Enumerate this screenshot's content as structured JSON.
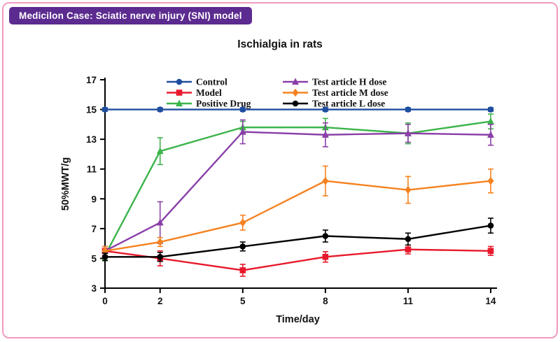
{
  "header": {
    "badge": "Medicilon Case: Sciatic nerve injury (SNI) model",
    "badge_bg": "#5b2b8f",
    "card_border": "#f19bc1"
  },
  "chart_data": {
    "type": "line",
    "title": "Ischialgia in rats",
    "xlabel": "Time/day",
    "ylabel": "50%MWT/g",
    "x": [
      0,
      2,
      5,
      8,
      11,
      14
    ],
    "xticks": [
      0,
      2,
      5,
      8,
      11,
      14
    ],
    "yticks": [
      3,
      5,
      7,
      9,
      11,
      13,
      15,
      17
    ],
    "xlim": [
      0,
      14
    ],
    "ylim": [
      3,
      17
    ],
    "grid": false,
    "legend": {
      "position": "top-inside",
      "columns": 2,
      "rows_per_column": 3
    },
    "series": [
      {
        "name": "Control",
        "color": "#1f4e9f",
        "marker": "circle",
        "values": [
          15,
          15,
          15,
          15,
          15,
          15
        ],
        "errors": [
          0.12,
          0.12,
          0.12,
          0.12,
          0.12,
          0.12
        ]
      },
      {
        "name": "Model",
        "color": "#e8192c",
        "marker": "square",
        "values": [
          5.5,
          5.0,
          4.2,
          5.1,
          5.6,
          5.5
        ],
        "errors": [
          0.3,
          0.5,
          0.4,
          0.35,
          0.3,
          0.3
        ]
      },
      {
        "name": "Positive Drug",
        "color": "#3bb44a",
        "marker": "triangle",
        "values": [
          5.2,
          12.2,
          13.8,
          13.8,
          13.4,
          14.2
        ],
        "errors": [
          0.3,
          0.9,
          0.4,
          0.6,
          0.7,
          0.5
        ]
      },
      {
        "name": "Test article H dose",
        "color": "#8a3fa8",
        "marker": "triangle",
        "values": [
          5.5,
          7.4,
          13.5,
          13.3,
          13.4,
          13.3
        ],
        "errors": [
          0.3,
          1.4,
          0.8,
          0.8,
          0.6,
          0.7
        ]
      },
      {
        "name": "Test article M dose",
        "color": "#f58220",
        "marker": "diamond",
        "values": [
          5.5,
          6.1,
          7.4,
          10.2,
          9.6,
          10.2
        ],
        "errors": [
          0.3,
          0.3,
          0.5,
          1.0,
          0.9,
          0.8
        ]
      },
      {
        "name": "Test article L dose",
        "color": "#000000",
        "marker": "circle",
        "values": [
          5.1,
          5.1,
          5.8,
          6.5,
          6.3,
          7.2
        ],
        "errors": [
          0.25,
          0.3,
          0.3,
          0.4,
          0.4,
          0.5
        ]
      }
    ]
  }
}
